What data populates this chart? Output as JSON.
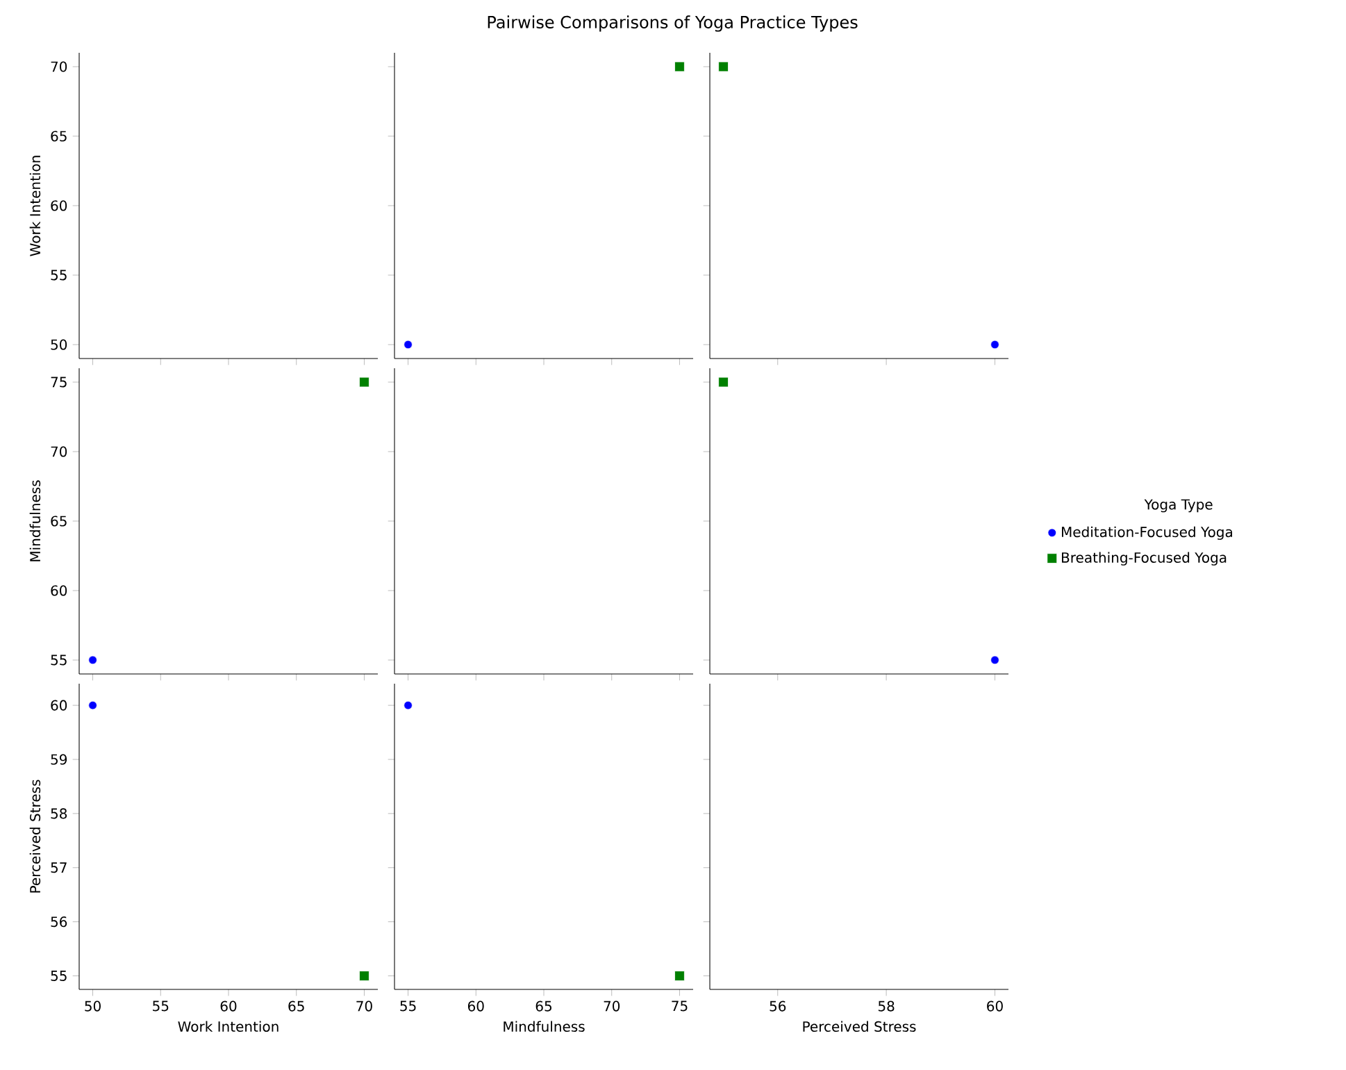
{
  "chart_data": [
    {
      "type": "other",
      "title": "Pairwise Comparisons of Yoga Practice Types"
    },
    {
      "type": "scatter",
      "ylabel": "Work Intention",
      "xlim": [
        49,
        71
      ],
      "ylim": [
        49,
        71
      ],
      "xticks": [
        50,
        55,
        60,
        65,
        70
      ],
      "yticks": [
        50,
        55,
        60,
        65,
        70
      ],
      "tick_labels": "y"
    },
    {
      "type": "scatter",
      "xlim": [
        54,
        76
      ],
      "ylim": [
        49,
        71
      ],
      "xticks": [
        55,
        60,
        65,
        70,
        75
      ],
      "yticks": [
        50,
        55,
        60,
        65,
        70
      ],
      "tick_labels": false,
      "series": [
        {
          "color": "#0000ff",
          "marker": "circle",
          "x": [
            55
          ],
          "values": [
            50
          ]
        },
        {
          "color": "#008000",
          "marker": "square",
          "x": [
            75
          ],
          "values": [
            70
          ]
        }
      ]
    },
    {
      "type": "scatter",
      "xlim": [
        54.75,
        60.25
      ],
      "ylim": [
        49,
        71
      ],
      "xticks": [
        56,
        58,
        60
      ],
      "yticks": [
        50,
        55,
        60,
        65,
        70
      ],
      "tick_labels": false,
      "series": [
        {
          "color": "#0000ff",
          "marker": "circle",
          "x": [
            60
          ],
          "values": [
            50
          ]
        },
        {
          "color": "#008000",
          "marker": "square",
          "x": [
            55
          ],
          "values": [
            70
          ]
        }
      ]
    },
    {
      "type": "scatter",
      "ylabel": "Mindfulness",
      "xlim": [
        49,
        71
      ],
      "ylim": [
        54,
        76
      ],
      "xticks": [
        50,
        55,
        60,
        65,
        70
      ],
      "yticks": [
        55,
        60,
        65,
        70,
        75
      ],
      "tick_labels": "y",
      "series": [
        {
          "color": "#0000ff",
          "marker": "circle",
          "x": [
            50
          ],
          "values": [
            55
          ]
        },
        {
          "color": "#008000",
          "marker": "square",
          "x": [
            70
          ],
          "values": [
            75
          ]
        }
      ]
    },
    {
      "type": "scatter",
      "xlim": [
        54,
        76
      ],
      "ylim": [
        54,
        76
      ],
      "xticks": [
        55,
        60,
        65,
        70,
        75
      ],
      "yticks": [
        55,
        60,
        65,
        70,
        75
      ],
      "tick_labels": false
    },
    {
      "type": "scatter",
      "legend_title": "Yoga Type",
      "legend": "right",
      "xlim": [
        54.75,
        60.25
      ],
      "ylim": [
        54,
        76
      ],
      "xticks": [
        56,
        58,
        60
      ],
      "yticks": [
        55,
        60,
        65,
        70,
        75
      ],
      "tick_labels": false,
      "series": [
        {
          "name": "Meditation-Focused Yoga",
          "color": "#0000ff",
          "marker": "circle",
          "x": [
            60
          ],
          "values": [
            55
          ]
        },
        {
          "name": "Breathing-Focused Yoga",
          "color": "#008000",
          "marker": "square",
          "x": [
            55
          ],
          "values": [
            75
          ]
        }
      ]
    },
    {
      "type": "scatter",
      "xlabel": "Work Intention",
      "ylabel": "Perceived Stress",
      "xlim": [
        49,
        71
      ],
      "ylim": [
        54.75,
        60.4
      ],
      "xticks": [
        50,
        55,
        60,
        65,
        70
      ],
      "yticks": [
        55,
        56,
        57,
        58,
        59,
        60
      ],
      "series": [
        {
          "color": "#0000ff",
          "marker": "circle",
          "x": [
            50
          ],
          "values": [
            60
          ]
        },
        {
          "color": "#008000",
          "marker": "square",
          "x": [
            70
          ],
          "values": [
            55
          ]
        }
      ]
    },
    {
      "type": "scatter",
      "xlabel": "Mindfulness",
      "xlim": [
        54,
        76
      ],
      "ylim": [
        54.75,
        60.4
      ],
      "xticks": [
        55,
        60,
        65,
        70,
        75
      ],
      "yticks": [
        55,
        56,
        57,
        58,
        59,
        60
      ],
      "tick_labels": "x",
      "series": [
        {
          "color": "#0000ff",
          "marker": "circle",
          "x": [
            55
          ],
          "values": [
            60
          ]
        },
        {
          "color": "#008000",
          "marker": "square",
          "x": [
            75
          ],
          "values": [
            55
          ]
        }
      ]
    },
    {
      "type": "scatter",
      "xlabel": "Perceived Stress",
      "xlim": [
        54.75,
        60.25
      ],
      "ylim": [
        54.75,
        60.4
      ],
      "xticks": [
        56,
        58,
        60
      ],
      "yticks": [
        55,
        56,
        57,
        58,
        59,
        60
      ],
      "tick_labels": "x"
    }
  ]
}
